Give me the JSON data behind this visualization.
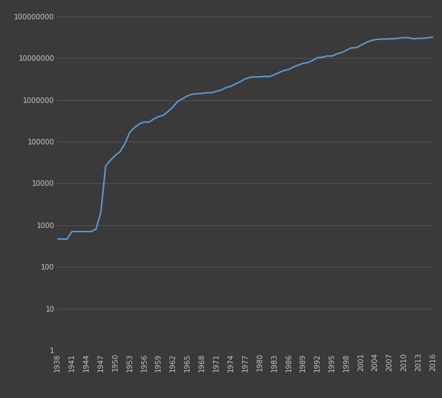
{
  "background_color": "#3a3a3a",
  "plot_bg_color": "#3a3a3a",
  "line_color": "#5b9bd5",
  "line_width": 1.5,
  "years": [
    1938,
    1939,
    1940,
    1941,
    1942,
    1943,
    1944,
    1945,
    1946,
    1947,
    1948,
    1949,
    1950,
    1951,
    1952,
    1953,
    1954,
    1955,
    1956,
    1957,
    1958,
    1959,
    1960,
    1961,
    1962,
    1963,
    1964,
    1965,
    1966,
    1967,
    1968,
    1969,
    1970,
    1971,
    1972,
    1973,
    1974,
    1975,
    1976,
    1977,
    1978,
    1979,
    1980,
    1981,
    1982,
    1983,
    1984,
    1985,
    1986,
    1987,
    1988,
    1989,
    1990,
    1991,
    1992,
    1993,
    1994,
    1995,
    1996,
    1997,
    1998,
    1999,
    2000,
    2001,
    2002,
    2003,
    2004,
    2005,
    2006,
    2007,
    2008,
    2009,
    2010,
    2011,
    2012,
    2013,
    2014,
    2015,
    2016
  ],
  "values": [
    464,
    464,
    464,
    700,
    700,
    700,
    700,
    700,
    800,
    2000,
    26000,
    36000,
    46600,
    57500,
    89500,
    166000,
    218000,
    267000,
    297000,
    294000,
    350000,
    400000,
    430000,
    535000,
    686000,
    930000,
    1074000,
    1255000,
    1375000,
    1415000,
    1433000,
    1488000,
    1500000,
    1619000,
    1728000,
    1977000,
    2129000,
    2440000,
    2760000,
    3200000,
    3500000,
    3600000,
    3572000,
    3682000,
    3628000,
    4030000,
    4532000,
    5100000,
    5340000,
    6175000,
    6860000,
    7556000,
    7887000,
    8923000,
    10325000,
    10562000,
    11299000,
    11300000,
    12741000,
    13648000,
    15629000,
    17760000,
    17840000,
    20458000,
    23615000,
    26400000,
    28030000,
    28743000,
    28860000,
    29152000,
    29461000,
    30545000,
    31230000,
    30924000,
    29150000,
    30143000,
    30080000,
    31084000,
    32311000
  ],
  "yticks": [
    1,
    10,
    100,
    1000,
    10000,
    100000,
    1000000,
    10000000,
    100000000
  ],
  "ytick_labels": [
    "1",
    "10",
    "100",
    "1000",
    "10000",
    "100000",
    "1000000",
    "10000000",
    "100000000"
  ],
  "ylim_min": 1,
  "ylim_max": 200000000,
  "xlim_min": 1938,
  "xlim_max": 2016,
  "tick_color": "#c8c8c8",
  "tick_fontsize": 7.5,
  "grid_color": "#5a5a5a",
  "grid_linewidth": 0.6
}
